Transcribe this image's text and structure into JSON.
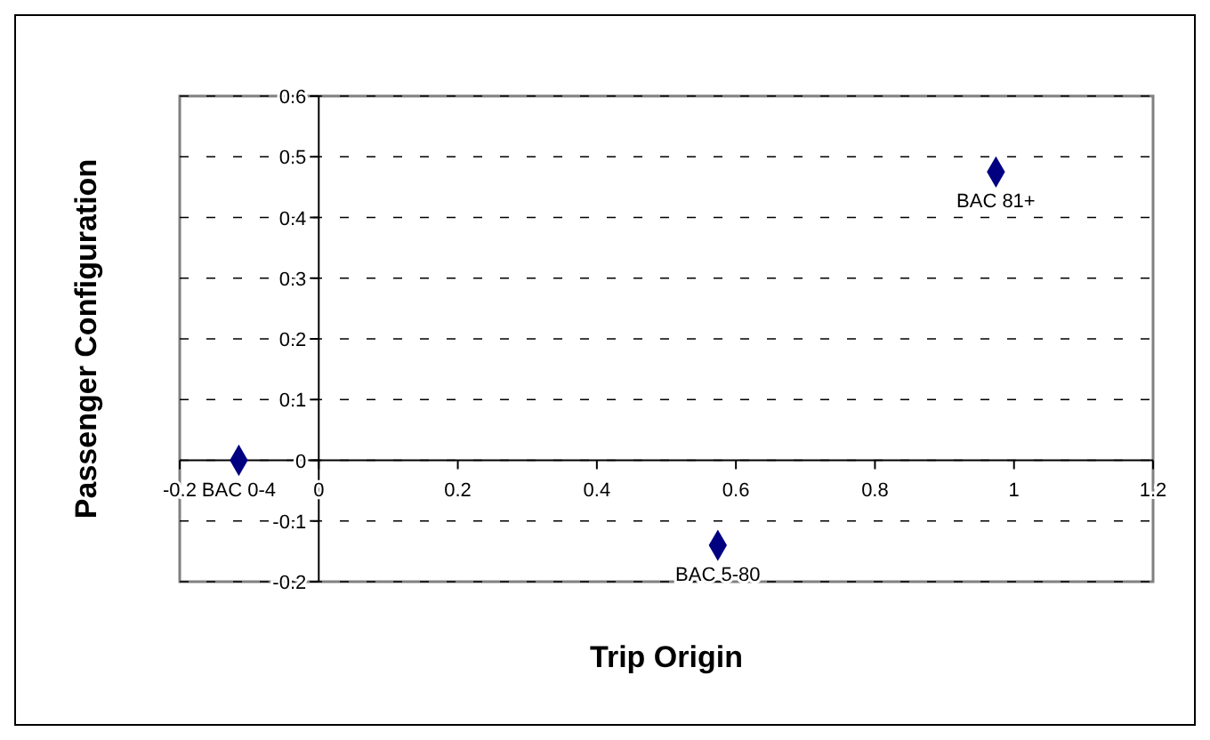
{
  "chart_data": {
    "type": "scatter",
    "xlabel": "Trip Origin",
    "ylabel": "Passenger Configuration",
    "x": [
      -0.115,
      0.574,
      0.974
    ],
    "values": [
      0,
      -0.14,
      0.475
    ],
    "color": "#000080",
    "marker": "diamond",
    "grid": "y",
    "xlim": [
      -0.2,
      1.2
    ],
    "xticks": [
      -0.2,
      0,
      0.2,
      0.4,
      0.6,
      0.8,
      1,
      1.2
    ],
    "ylim": [
      -0.2,
      0.6
    ],
    "yticks": [
      -0.2,
      -0.1,
      0,
      0.1,
      0.2,
      0.3,
      0.4,
      0.5,
      0.6
    ],
    "annotations": [
      {
        "text": "BAC 0-4",
        "x": -0.115,
        "y": 0
      },
      {
        "text": "BAC 5-80",
        "x": 0.574,
        "y": -0.14
      },
      {
        "text": "BAC 81+",
        "x": 0.974,
        "y": 0.475
      }
    ]
  }
}
